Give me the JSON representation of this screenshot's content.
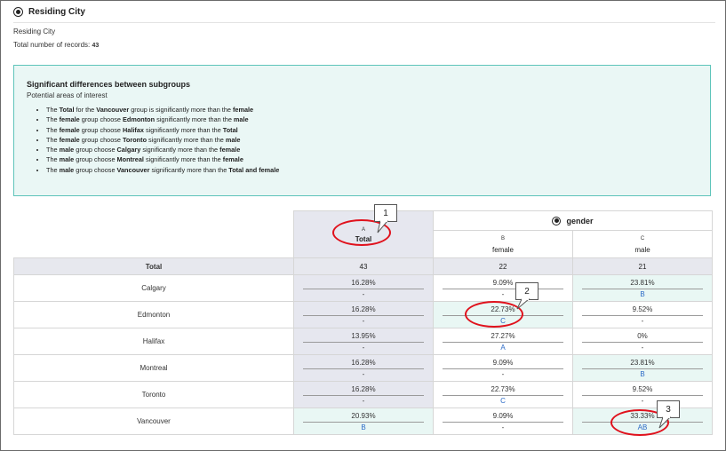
{
  "header": {
    "title": "Residing City",
    "subtitle": "Residing City",
    "records_label": "Total number of records:",
    "records_value": "43"
  },
  "box": {
    "title": "Significant differences between subgroups",
    "subtitle": "Potential areas of interest",
    "items": [
      [
        {
          "t": "The "
        },
        {
          "b": "Total"
        },
        {
          "t": " for the "
        },
        {
          "b": "Vancouver"
        },
        {
          "t": " group is significantly more than the "
        },
        {
          "b": "female"
        }
      ],
      [
        {
          "t": "The "
        },
        {
          "b": "female"
        },
        {
          "t": " group choose "
        },
        {
          "b": "Edmonton"
        },
        {
          "t": " significantly more than the "
        },
        {
          "b": "male"
        }
      ],
      [
        {
          "t": "The "
        },
        {
          "b": "female"
        },
        {
          "t": " group choose "
        },
        {
          "b": "Halifax"
        },
        {
          "t": " significantly more than the "
        },
        {
          "b": "Total"
        }
      ],
      [
        {
          "t": "The "
        },
        {
          "b": "female"
        },
        {
          "t": " group choose "
        },
        {
          "b": "Toronto"
        },
        {
          "t": " significantly more than the "
        },
        {
          "b": "male"
        }
      ],
      [
        {
          "t": "The "
        },
        {
          "b": "male"
        },
        {
          "t": " group choose "
        },
        {
          "b": "Calgary"
        },
        {
          "t": " significantly more than the "
        },
        {
          "b": "female"
        }
      ],
      [
        {
          "t": "The "
        },
        {
          "b": "male"
        },
        {
          "t": " group choose "
        },
        {
          "b": "Montreal"
        },
        {
          "t": " significantly more than the "
        },
        {
          "b": "female"
        }
      ],
      [
        {
          "t": "The "
        },
        {
          "b": "male"
        },
        {
          "t": " group choose "
        },
        {
          "b": "Vancouver"
        },
        {
          "t": " significantly more than the "
        },
        {
          "b": "Total and female"
        }
      ]
    ]
  },
  "table": {
    "group_label": "gender",
    "columns": [
      {
        "letter": "A",
        "name": "Total"
      },
      {
        "letter": "B",
        "name": "female"
      },
      {
        "letter": "C",
        "name": "male"
      }
    ],
    "total_row": {
      "label": "Total",
      "values": [
        "43",
        "22",
        "21"
      ]
    },
    "rows": [
      {
        "label": "Calgary",
        "cells": [
          {
            "pct": "16.28%",
            "sig": "-",
            "hl": false
          },
          {
            "pct": "9.09%",
            "sig": "-",
            "hl": false
          },
          {
            "pct": "23.81%",
            "sig": "B",
            "hl": true
          }
        ]
      },
      {
        "label": "Edmonton",
        "cells": [
          {
            "pct": "16.28%",
            "sig": "-",
            "hl": false
          },
          {
            "pct": "22.73%",
            "sig": "C",
            "hl": true
          },
          {
            "pct": "9.52%",
            "sig": "-",
            "hl": false
          }
        ]
      },
      {
        "label": "Halifax",
        "cells": [
          {
            "pct": "13.95%",
            "sig": "-",
            "hl": false
          },
          {
            "pct": "27.27%",
            "sig": "A",
            "hl": false
          },
          {
            "pct": "0%",
            "sig": "-",
            "hl": false
          }
        ]
      },
      {
        "label": "Montreal",
        "cells": [
          {
            "pct": "16.28%",
            "sig": "-",
            "hl": false
          },
          {
            "pct": "9.09%",
            "sig": "-",
            "hl": false
          },
          {
            "pct": "23.81%",
            "sig": "B",
            "hl": true
          }
        ]
      },
      {
        "label": "Toronto",
        "cells": [
          {
            "pct": "16.28%",
            "sig": "-",
            "hl": false
          },
          {
            "pct": "22.73%",
            "sig": "C",
            "hl": false
          },
          {
            "pct": "9.52%",
            "sig": "-",
            "hl": false
          }
        ]
      },
      {
        "label": "Vancouver",
        "cells": [
          {
            "pct": "20.93%",
            "sig": "B",
            "hl": true
          },
          {
            "pct": "9.09%",
            "sig": "-",
            "hl": false
          },
          {
            "pct": "33.33%",
            "sig": "AB",
            "hl": true
          }
        ]
      }
    ]
  },
  "callouts": [
    "1",
    "2",
    "3"
  ],
  "colors": {
    "accent_border": "#5ec4ba",
    "significance_letter": "#2a69c6",
    "annotation_red": "#e0111c"
  }
}
